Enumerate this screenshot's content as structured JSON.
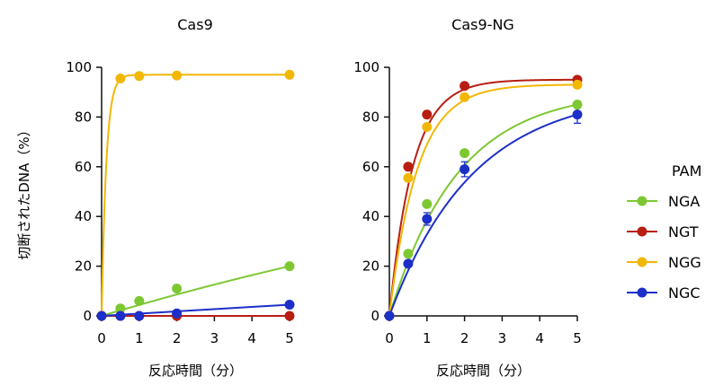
{
  "chart_data": [
    {
      "type": "line",
      "title": "Cas9",
      "xlabel": "反応時間（分）",
      "ylabel": "切断されたDNA（%）",
      "xlim": [
        0,
        5
      ],
      "ylim": [
        0,
        100
      ],
      "xticks": [
        0,
        1,
        2,
        3,
        4,
        5
      ],
      "yticks": [
        0,
        20,
        40,
        60,
        80,
        100
      ],
      "grid": false,
      "x": [
        0,
        0.5,
        1,
        2,
        5
      ],
      "series": [
        {
          "name": "NGA",
          "values": [
            0,
            3,
            6,
            11,
            20
          ]
        },
        {
          "name": "NGT",
          "values": [
            0,
            0,
            0,
            0,
            0
          ]
        },
        {
          "name": "NGG",
          "values": [
            0,
            95.5,
            96.5,
            96.7,
            97
          ]
        },
        {
          "name": "NGC",
          "values": [
            0,
            0,
            0,
            1,
            4.5
          ]
        }
      ]
    },
    {
      "type": "line",
      "title": "Cas9-NG",
      "xlabel": "反応時間（分）",
      "ylabel": "",
      "xlim": [
        0,
        5
      ],
      "ylim": [
        0,
        100
      ],
      "xticks": [
        0,
        1,
        2,
        3,
        4,
        5
      ],
      "yticks": [
        0,
        20,
        40,
        60,
        80,
        100
      ],
      "grid": false,
      "x": [
        0,
        0.5,
        1,
        2,
        5
      ],
      "series": [
        {
          "name": "NGA",
          "values": [
            0,
            25,
            45,
            65.5,
            85
          ]
        },
        {
          "name": "NGT",
          "values": [
            0,
            60,
            81,
            92.5,
            95
          ]
        },
        {
          "name": "NGG",
          "values": [
            0,
            55.5,
            76,
            88,
            93
          ]
        },
        {
          "name": "NGC",
          "values": [
            0,
            21,
            39,
            59,
            81
          ]
        }
      ],
      "error_bars": {
        "NGC": [
          0,
          1,
          2.5,
          3,
          3.5
        ]
      }
    }
  ],
  "legend": {
    "title": "PAM",
    "placement": "right",
    "entries": [
      {
        "name": "NGA",
        "color": "#7dc832"
      },
      {
        "name": "NGT",
        "color": "#b81e12"
      },
      {
        "name": "NGG",
        "color": "#f2b705"
      },
      {
        "name": "NGC",
        "color": "#1c2fc9"
      }
    ]
  },
  "curve_rates": {
    "Cas9": {
      "NGA": 0.05,
      "NGT": 0,
      "NGG": 8,
      "NGC": 0.01
    },
    "Cas9-NG": {
      "NGA": 0.55,
      "NGT": 1.6,
      "NGG": 1.35,
      "NGC": 0.45
    }
  }
}
